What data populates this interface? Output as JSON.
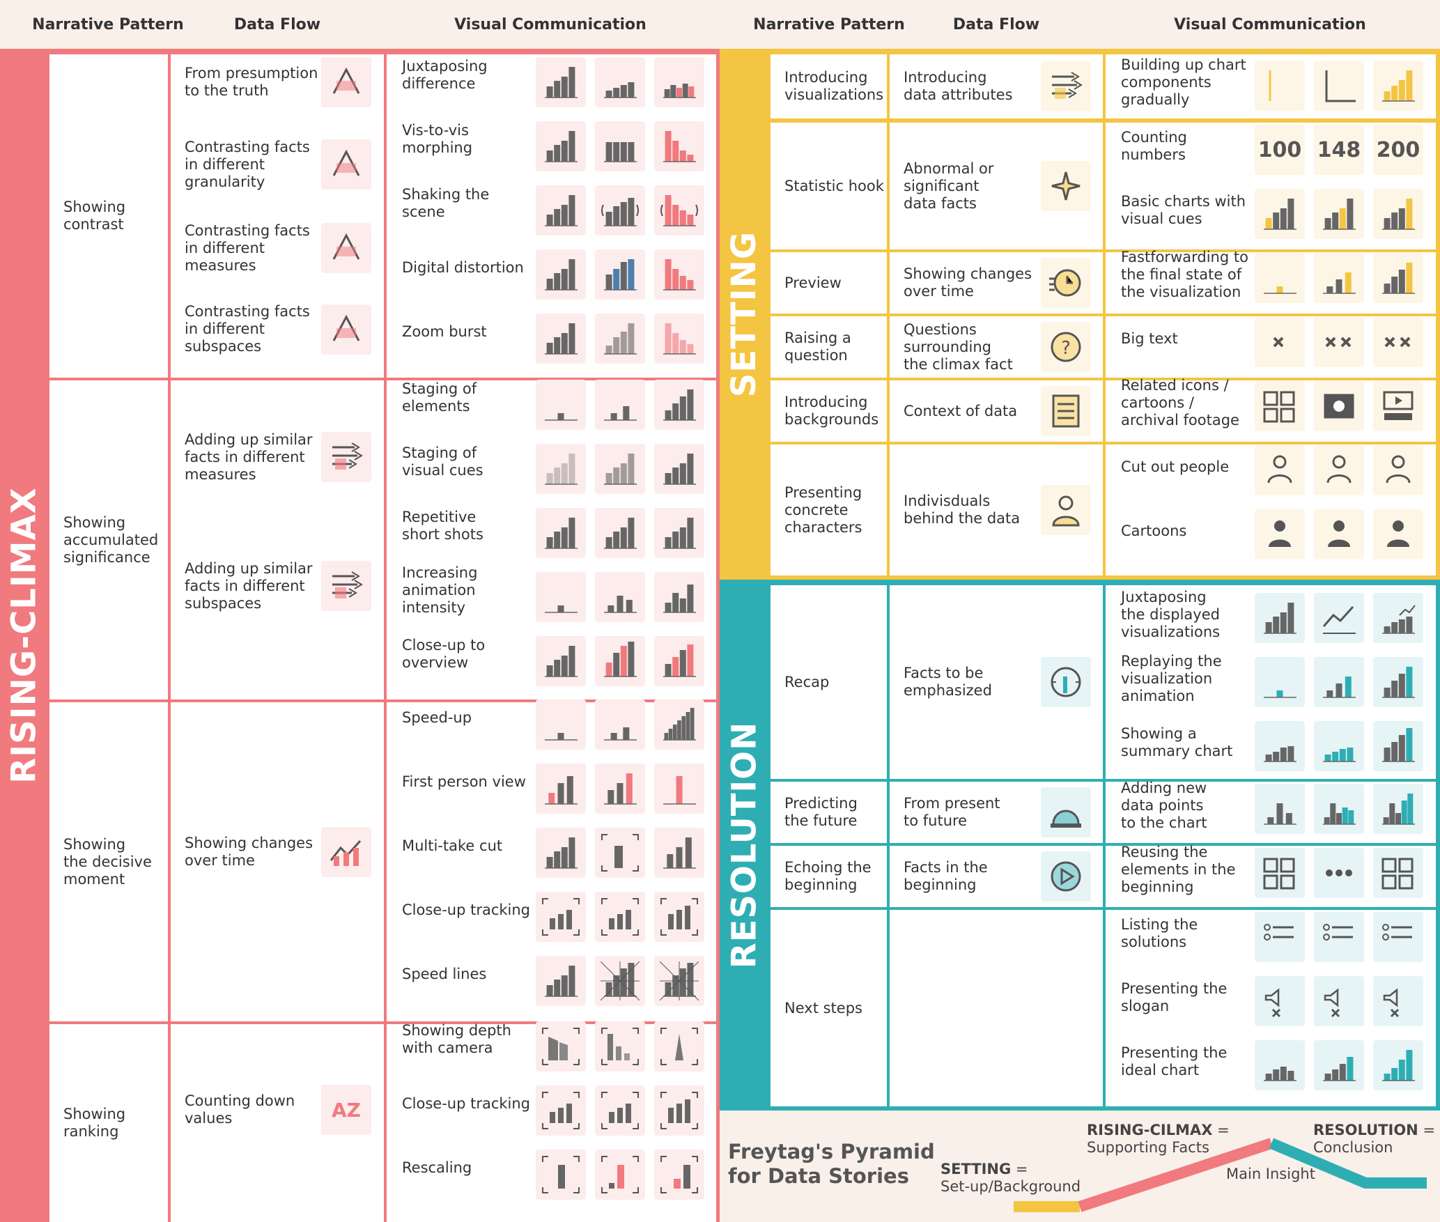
{
  "headers": {
    "left": [
      "Narrative Pattern",
      "Data Flow",
      "Visual Communication"
    ],
    "right": [
      "Narrative Pattern",
      "Data Flow",
      "Visual Communication"
    ]
  },
  "sections": {
    "rising": "RISING-CLIMAX",
    "setting": "SETTING",
    "resolution": "RESOLUTION"
  },
  "colors": {
    "rising": "#f07a7e",
    "setting": "#f4c542",
    "resolution": "#2eaeb3",
    "rising_bg": "#fdecec",
    "setting_bg": "#fdf6e6",
    "resolution_bg": "#e6f4f5",
    "bar": "#666666"
  },
  "rising": {
    "groups": [
      {
        "pattern": "Showing\ncontrast",
        "flows": [
          "From presumption\nto the truth",
          "Contrasting facts\nin different\ngranularity",
          "Contrasting facts\nin different\nmeasures",
          "Contrasting facts\nin different\nsubspaces"
        ],
        "visuals": [
          "Juxtaposing\ndifference",
          "Vis-to-vis\nmorphing",
          "Shaking the\nscene",
          "Digital distortion",
          "Zoom burst"
        ]
      },
      {
        "pattern": "Showing\naccumulated\nsignificance",
        "flows": [
          "Adding up similar\nfacts in different\nmeasures",
          "Adding up similar\nfacts in different\nsubspaces"
        ],
        "visuals": [
          "Staging of\nelements",
          "Staging of\nvisual cues",
          "Repetitive\nshort shots",
          "Increasing\nanimation\nintensity",
          "Close-up to\noverview"
        ]
      },
      {
        "pattern": "Showing\nthe decisive\nmoment",
        "flows": [
          "Showing changes\nover time"
        ],
        "visuals": [
          "Speed-up",
          "First person view",
          "Multi-take cut",
          "Close-up tracking",
          "Speed lines"
        ]
      },
      {
        "pattern": "Showing\nranking",
        "flows": [
          "Counting down\nvalues"
        ],
        "visuals": [
          "Showing depth\nwith camera",
          "Close-up tracking",
          "Rescaling"
        ]
      }
    ]
  },
  "setting": {
    "rows": [
      {
        "pattern": "Introducing\nvisualizations",
        "flow": "Introducing\ndata attributes",
        "visuals": [
          "Building up chart\ncomponents\ngradually"
        ]
      },
      {
        "pattern": "Statistic hook",
        "flow": "Abnormal or\nsignificant\ndata facts",
        "visuals": [
          "Counting\nnumbers",
          "Basic charts with\nvisual cues"
        ]
      },
      {
        "pattern": "Preview",
        "flow": "Showing changes\nover time",
        "visuals": [
          "Fastforwarding to\nthe final state of\nthe visualization"
        ]
      },
      {
        "pattern": "Raising a\nquestion",
        "flow": "Questions\nsurrounding\nthe climax fact",
        "visuals": [
          "Big text"
        ]
      },
      {
        "pattern": "Introducing\nbackgrounds",
        "flow": "Context of data",
        "visuals": [
          "Related icons /\ncartoons /\narchival footage"
        ]
      },
      {
        "pattern": "Presenting\nconcrete\ncharacters",
        "flow": "Indivisduals\nbehind the data",
        "visuals": [
          "Cut out people",
          "Cartoons"
        ]
      }
    ],
    "counting_numbers": [
      "100",
      "148",
      "200"
    ]
  },
  "resolution": {
    "rows": [
      {
        "pattern": "Recap",
        "flow": "Facts to be\nemphasized",
        "visuals": [
          "Juxtaposing\nthe displayed\nvisualizations",
          "Replaying the\nvisualization\nanimation",
          "Showing a\nsummary chart"
        ]
      },
      {
        "pattern": "Predicting\nthe future",
        "flow": "From present\nto future",
        "visuals": [
          "Adding new\ndata points\nto the chart"
        ]
      },
      {
        "pattern": "Echoing the\nbeginning",
        "flow": "Facts in the\nbeginning",
        "visuals": [
          "Reusing the\nelements in the\nbeginning"
        ]
      },
      {
        "pattern": "Next steps",
        "flow": "",
        "visuals": [
          "Listing the\nsolutions",
          "Presenting the\nslogan",
          "Presenting the\nideal chart"
        ]
      }
    ]
  },
  "legend": {
    "title_line1": "Freytag's Pyramid",
    "title_line2": "for Data Stories",
    "setting_key": "SETTING",
    "setting_eq": "=",
    "setting_desc": "Set-up/Background",
    "rising_key": "RISING-CILMAX",
    "rising_eq": "=",
    "rising_desc": "Supporting Facts",
    "resolution_key": "RESOLUTION",
    "resolution_eq": "=",
    "resolution_desc": "Conclusion",
    "peak": "Main Insight"
  }
}
